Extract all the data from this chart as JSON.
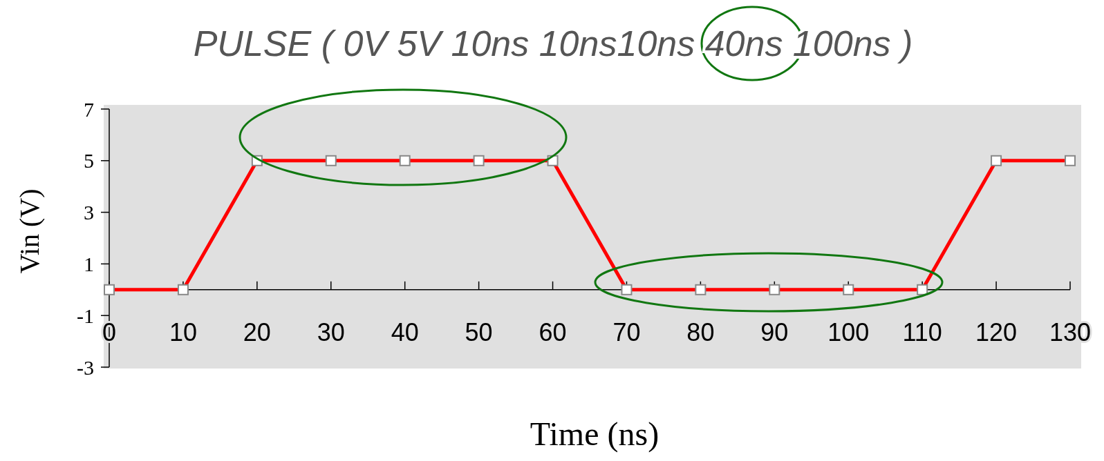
{
  "chart_data": {
    "type": "line",
    "title": "PULSE ( 0V 5V 10ns 10ns10ns 40ns 100ns )",
    "xlabel": "Time (ns)",
    "ylabel": "Vin (V)",
    "x": [
      0,
      10,
      20,
      30,
      40,
      50,
      60,
      70,
      80,
      90,
      100,
      110,
      120,
      130
    ],
    "series": [
      {
        "color": "#ff0000",
        "values": [
          0,
          0,
          5,
          5,
          5,
          5,
          5,
          0,
          0,
          0,
          0,
          0,
          5,
          5
        ]
      }
    ],
    "xlim": [
      0,
      130
    ],
    "xticks": [
      0,
      10,
      20,
      30,
      40,
      50,
      60,
      70,
      80,
      90,
      100,
      110,
      120,
      130
    ],
    "ylim": [
      -3,
      7
    ],
    "yticks": [
      -3,
      -1,
      1,
      3,
      5,
      7
    ],
    "marker": "square",
    "line_style": "solid"
  }
}
